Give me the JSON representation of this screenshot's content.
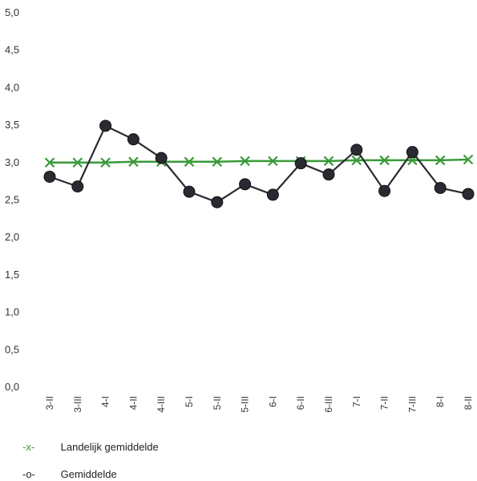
{
  "chart_data": {
    "type": "line",
    "categories": [
      "3-II",
      "3-III",
      "4-I",
      "4-II",
      "4-III",
      "5-I",
      "5-II",
      "5-III",
      "6-I",
      "6-II",
      "6-III",
      "7-I",
      "7-II",
      "7-III",
      "8-I",
      "8-II"
    ],
    "ylim": [
      0,
      5
    ],
    "yticks": [
      "0,0",
      "0,5",
      "1,0",
      "1,5",
      "2,0",
      "2,5",
      "3,0",
      "3,5",
      "4,0",
      "4,5",
      "5,0"
    ],
    "series": [
      {
        "name": "Landelijk gemiddelde",
        "marker": "x",
        "color": "#3a9a3a",
        "values": [
          2.99,
          2.99,
          2.99,
          3.0,
          3.0,
          3.0,
          3.0,
          3.01,
          3.01,
          3.01,
          3.01,
          3.02,
          3.02,
          3.02,
          3.02,
          3.03
        ]
      },
      {
        "name": "Gemiddelde",
        "marker": "o",
        "color": "#2a2a33",
        "values": [
          2.8,
          2.67,
          3.48,
          3.3,
          3.05,
          2.6,
          2.46,
          2.7,
          2.56,
          2.98,
          2.83,
          3.16,
          2.61,
          3.13,
          2.65,
          2.57
        ]
      }
    ],
    "grid": false,
    "legend": "bottom-left"
  },
  "legend": {
    "national_marker": "-x-",
    "national_label": "Landelijk gemiddelde",
    "average_marker": "-o-",
    "average_label": "Gemiddelde"
  }
}
